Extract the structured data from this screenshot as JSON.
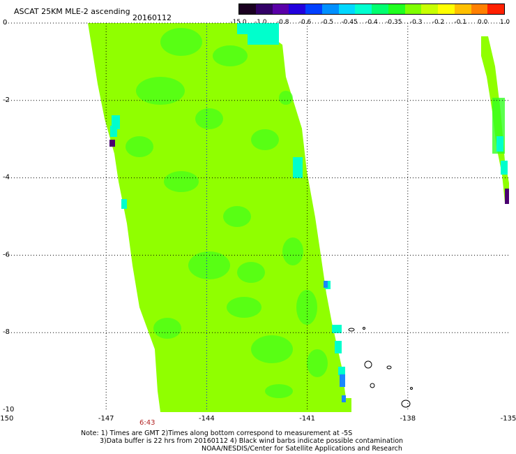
{
  "header": {
    "title": "ASCAT 25KM MLE-2 ascending",
    "date": "20160112"
  },
  "colorbar": {
    "labels": [
      "-15.0",
      "-1.0",
      "-0.8",
      "-0.6",
      "-0.5",
      "-0.45",
      "-0.4",
      "-0.35",
      "-0.3",
      "-0.2",
      "-0.1",
      "0.0",
      "1.0"
    ],
    "colors": [
      "#1a0020",
      "#330066",
      "#5a00a8",
      "#2200dd",
      "#0040ff",
      "#0090ff",
      "#00d8ff",
      "#00ffd0",
      "#00ff70",
      "#20ff20",
      "#80ff00",
      "#c8ff00",
      "#ffff00",
      "#ffc000",
      "#ff8000",
      "#ff2000"
    ]
  },
  "map": {
    "lat_labels": [
      "0",
      "-2",
      "-4",
      "-6",
      "-8",
      "-10"
    ],
    "lon_labels": [
      "-150",
      "-147",
      "-144",
      "-141",
      "-138",
      "-135"
    ],
    "pass_time": "6:43",
    "colors": {
      "main": "#90ff00",
      "green": "#33ff22",
      "cyan": "#00ffcc",
      "blue": "#1a88ff",
      "purple": "#4a0070",
      "grid": "#000000",
      "grid_center": "#0000ff"
    }
  },
  "notes": {
    "line1": "Note: 1) Times are GMT 2)Times along bottom correspond to measurement at -5S",
    "line2": "3)Data buffer is 22 hrs from 20160112 4) Black wind barbs indicate possible contamination",
    "line3": "NOAA/NESDIS/Center for Satellite Applications and Research"
  }
}
